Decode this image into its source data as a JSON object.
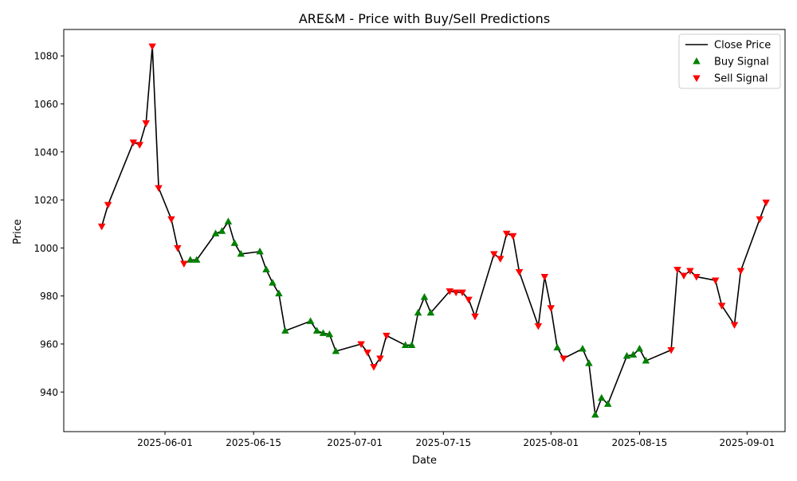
{
  "chart_data": {
    "type": "line",
    "title": "ARE&M - Price with Buy/Sell Predictions",
    "xlabel": "Date",
    "ylabel": "Price",
    "xlim": [
      "2025-05-16",
      "2025-09-07"
    ],
    "ylim": [
      923.5,
      1091
    ],
    "grid": false,
    "legend_position": "top-right",
    "x_ticks": [
      "2025-06-01",
      "2025-06-15",
      "2025-07-01",
      "2025-07-15",
      "2025-08-01",
      "2025-08-15",
      "2025-09-01"
    ],
    "y_ticks": [
      940,
      960,
      980,
      1000,
      1020,
      1040,
      1060,
      1080
    ],
    "colors": {
      "close": "#000000",
      "buy": "#008000",
      "sell": "#ff0000"
    },
    "series": [
      {
        "name": "Close Price",
        "kind": "line",
        "points": [
          [
            "2025-05-22",
            1009
          ],
          [
            "2025-05-23",
            1018
          ],
          [
            "2025-05-27",
            1044
          ],
          [
            "2025-05-28",
            1043
          ],
          [
            "2025-05-29",
            1052
          ],
          [
            "2025-05-30",
            1084
          ],
          [
            "2025-05-31",
            1025
          ],
          [
            "2025-06-02",
            1012
          ],
          [
            "2025-06-03",
            1000
          ],
          [
            "2025-06-04",
            993.5
          ],
          [
            "2025-06-05",
            995
          ],
          [
            "2025-06-06",
            995
          ],
          [
            "2025-06-09",
            1006
          ],
          [
            "2025-06-10",
            1007
          ],
          [
            "2025-06-11",
            1011
          ],
          [
            "2025-06-12",
            1002
          ],
          [
            "2025-06-13",
            997.5
          ],
          [
            "2025-06-16",
            998.5
          ],
          [
            "2025-06-17",
            991
          ],
          [
            "2025-06-18",
            985.5
          ],
          [
            "2025-06-19",
            981
          ],
          [
            "2025-06-20",
            965.5
          ],
          [
            "2025-06-24",
            969.5
          ],
          [
            "2025-06-25",
            965.5
          ],
          [
            "2025-06-26",
            964.5
          ],
          [
            "2025-06-27",
            964
          ],
          [
            "2025-06-28",
            957
          ],
          [
            "2025-07-02",
            960
          ],
          [
            "2025-07-03",
            956.5
          ],
          [
            "2025-07-04",
            950.5
          ],
          [
            "2025-07-05",
            954
          ],
          [
            "2025-07-06",
            963.5
          ],
          [
            "2025-07-09",
            959.5
          ],
          [
            "2025-07-10",
            959.5
          ],
          [
            "2025-07-11",
            973
          ],
          [
            "2025-07-12",
            979.5
          ],
          [
            "2025-07-13",
            973
          ],
          [
            "2025-07-16",
            982
          ],
          [
            "2025-07-17",
            981.5
          ],
          [
            "2025-07-18",
            981.5
          ],
          [
            "2025-07-19",
            978.5
          ],
          [
            "2025-07-20",
            971.5
          ],
          [
            "2025-07-23",
            997.5
          ],
          [
            "2025-07-24",
            995.5
          ],
          [
            "2025-07-25",
            1006
          ],
          [
            "2025-07-26",
            1005
          ],
          [
            "2025-07-27",
            990
          ],
          [
            "2025-07-30",
            967.5
          ],
          [
            "2025-07-31",
            988
          ],
          [
            "2025-08-01",
            975
          ],
          [
            "2025-08-02",
            958.5
          ],
          [
            "2025-08-03",
            954
          ],
          [
            "2025-08-06",
            958
          ],
          [
            "2025-08-07",
            952
          ],
          [
            "2025-08-08",
            930.5
          ],
          [
            "2025-08-09",
            937.5
          ],
          [
            "2025-08-10",
            935
          ],
          [
            "2025-08-13",
            955
          ],
          [
            "2025-08-14",
            955.5
          ],
          [
            "2025-08-15",
            958
          ],
          [
            "2025-08-16",
            953
          ],
          [
            "2025-08-20",
            957.5
          ],
          [
            "2025-08-21",
            991
          ],
          [
            "2025-08-22",
            988.5
          ],
          [
            "2025-08-23",
            990.5
          ],
          [
            "2025-08-24",
            988
          ],
          [
            "2025-08-27",
            986.5
          ],
          [
            "2025-08-28",
            976
          ],
          [
            "2025-08-30",
            968
          ],
          [
            "2025-08-31",
            990.5
          ],
          [
            "2025-09-03",
            1012
          ],
          [
            "2025-09-04",
            1019
          ]
        ]
      },
      {
        "name": "Buy Signal",
        "kind": "scatter",
        "marker": "triangle-up",
        "points": [
          [
            "2025-06-05",
            995
          ],
          [
            "2025-06-06",
            995
          ],
          [
            "2025-06-09",
            1006
          ],
          [
            "2025-06-10",
            1007
          ],
          [
            "2025-06-11",
            1011
          ],
          [
            "2025-06-12",
            1002
          ],
          [
            "2025-06-13",
            997.5
          ],
          [
            "2025-06-16",
            998.5
          ],
          [
            "2025-06-17",
            991
          ],
          [
            "2025-06-18",
            985.5
          ],
          [
            "2025-06-19",
            981
          ],
          [
            "2025-06-20",
            965.5
          ],
          [
            "2025-06-24",
            969.5
          ],
          [
            "2025-06-25",
            965.5
          ],
          [
            "2025-06-26",
            964.5
          ],
          [
            "2025-06-27",
            964
          ],
          [
            "2025-06-28",
            957
          ],
          [
            "2025-07-09",
            959.5
          ],
          [
            "2025-07-10",
            959.5
          ],
          [
            "2025-07-11",
            973
          ],
          [
            "2025-07-12",
            979.5
          ],
          [
            "2025-07-13",
            973
          ],
          [
            "2025-08-02",
            958.5
          ],
          [
            "2025-08-06",
            958
          ],
          [
            "2025-08-07",
            952
          ],
          [
            "2025-08-08",
            930.5
          ],
          [
            "2025-08-09",
            937.5
          ],
          [
            "2025-08-10",
            935
          ],
          [
            "2025-08-13",
            955
          ],
          [
            "2025-08-14",
            955.5
          ],
          [
            "2025-08-15",
            958
          ],
          [
            "2025-08-16",
            953
          ]
        ]
      },
      {
        "name": "Sell Signal",
        "kind": "scatter",
        "marker": "triangle-down",
        "points": [
          [
            "2025-05-22",
            1009
          ],
          [
            "2025-05-23",
            1018
          ],
          [
            "2025-05-27",
            1044
          ],
          [
            "2025-05-28",
            1043
          ],
          [
            "2025-05-29",
            1052
          ],
          [
            "2025-05-30",
            1084
          ],
          [
            "2025-05-31",
            1025
          ],
          [
            "2025-06-02",
            1012
          ],
          [
            "2025-06-03",
            1000
          ],
          [
            "2025-06-04",
            993.5
          ],
          [
            "2025-07-02",
            960
          ],
          [
            "2025-07-03",
            956.5
          ],
          [
            "2025-07-04",
            950.5
          ],
          [
            "2025-07-05",
            954
          ],
          [
            "2025-07-06",
            963.5
          ],
          [
            "2025-07-16",
            982
          ],
          [
            "2025-07-17",
            981.5
          ],
          [
            "2025-07-18",
            981.5
          ],
          [
            "2025-07-19",
            978.5
          ],
          [
            "2025-07-20",
            971.5
          ],
          [
            "2025-07-23",
            997.5
          ],
          [
            "2025-07-24",
            995.5
          ],
          [
            "2025-07-25",
            1006
          ],
          [
            "2025-07-26",
            1005
          ],
          [
            "2025-07-27",
            990
          ],
          [
            "2025-07-30",
            967.5
          ],
          [
            "2025-07-31",
            988
          ],
          [
            "2025-08-01",
            975
          ],
          [
            "2025-08-03",
            954
          ],
          [
            "2025-08-20",
            957.5
          ],
          [
            "2025-08-21",
            991
          ],
          [
            "2025-08-22",
            988.5
          ],
          [
            "2025-08-23",
            990.5
          ],
          [
            "2025-08-24",
            988
          ],
          [
            "2025-08-27",
            986.5
          ],
          [
            "2025-08-28",
            976
          ],
          [
            "2025-08-30",
            968
          ],
          [
            "2025-08-31",
            990.5
          ],
          [
            "2025-09-03",
            1012
          ],
          [
            "2025-09-04",
            1019
          ]
        ]
      }
    ]
  }
}
